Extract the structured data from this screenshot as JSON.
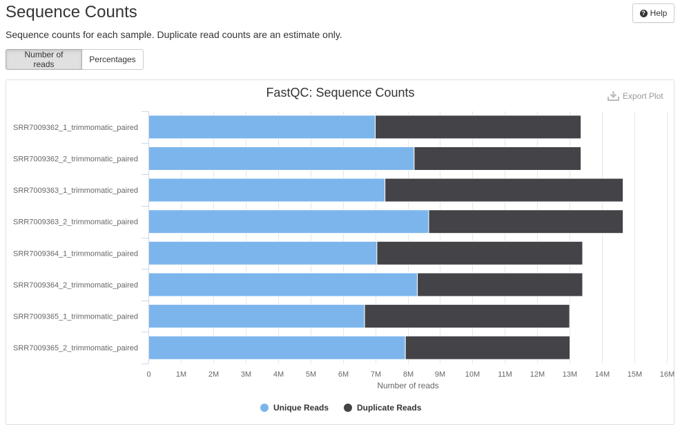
{
  "header": {
    "title": "Sequence Counts",
    "help_label": "Help",
    "subtitle": "Sequence counts for each sample. Duplicate read counts are an estimate only."
  },
  "toggle": {
    "options": [
      "Number of reads",
      "Percentages"
    ],
    "active": "Number of reads"
  },
  "export": {
    "label": "Export Plot",
    "icon": "download-icon"
  },
  "colors": {
    "unique": "#7cb5ec",
    "duplicate": "#434348",
    "grid": "#e6e6e6"
  },
  "chart_data": {
    "type": "bar",
    "orientation": "horizontal",
    "stacked": true,
    "title": "FastQC: Sequence Counts",
    "xlabel": "Number of reads",
    "ylabel": "",
    "xlim": [
      0,
      16000000
    ],
    "xticks": [
      0,
      1000000,
      2000000,
      3000000,
      4000000,
      5000000,
      6000000,
      7000000,
      8000000,
      9000000,
      10000000,
      11000000,
      12000000,
      13000000,
      14000000,
      15000000,
      16000000
    ],
    "xtick_labels": [
      "0",
      "1M",
      "2M",
      "3M",
      "4M",
      "5M",
      "6M",
      "7M",
      "8M",
      "9M",
      "10M",
      "11M",
      "12M",
      "13M",
      "14M",
      "15M",
      "16M"
    ],
    "grid": "vertical",
    "legend_position": "bottom-center",
    "categories": [
      "SRR7009362_1_trimmomatic_paired",
      "SRR7009362_2_trimmomatic_paired",
      "SRR7009363_1_trimmomatic_paired",
      "SRR7009363_2_trimmomatic_paired",
      "SRR7009364_1_trimmomatic_paired",
      "SRR7009364_2_trimmomatic_paired",
      "SRR7009365_1_trimmomatic_paired",
      "SRR7009365_2_trimmomatic_paired"
    ],
    "series": [
      {
        "name": "Unique Reads",
        "values": [
          7000000,
          8200000,
          7300000,
          8650000,
          7050000,
          8300000,
          6670000,
          7930000
        ]
      },
      {
        "name": "Duplicate Reads",
        "values": [
          6350000,
          5150000,
          7350000,
          6000000,
          6350000,
          5100000,
          6330000,
          5080000
        ]
      }
    ]
  }
}
